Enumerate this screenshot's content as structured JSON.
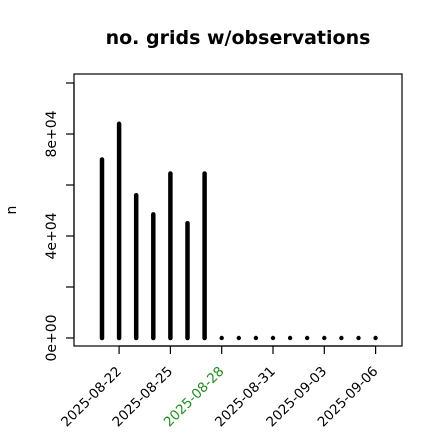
{
  "chart_data": {
    "type": "bar",
    "title": "no. grids w/observations",
    "ylabel": "n",
    "xlabel": "",
    "ylim": [
      0,
      100000
    ],
    "y_ticks": [
      0,
      20000,
      40000,
      60000,
      80000,
      100000
    ],
    "y_tick_labels": [
      "0e+00",
      "",
      "4e+04",
      "",
      "8e+04",
      ""
    ],
    "categories": [
      "2025-08-21",
      "2025-08-22",
      "2025-08-23",
      "2025-08-24",
      "2025-08-25",
      "2025-08-26",
      "2025-08-27",
      "2025-08-28",
      "2025-08-29",
      "2025-08-30",
      "2025-08-31",
      "2025-09-01",
      "2025-09-02",
      "2025-09-03",
      "2025-09-04",
      "2025-09-05",
      "2025-09-06"
    ],
    "values": [
      70000,
      84000,
      56000,
      48500,
      64500,
      45000,
      64500,
      0,
      0,
      0,
      0,
      0,
      0,
      0,
      0,
      0,
      0
    ],
    "x_tick_labels": [
      "2025-08-22",
      "2025-08-25",
      "2025-08-28",
      "2025-08-31",
      "2025-09-03",
      "2025-09-06"
    ],
    "highlight_tick": "2025-08-28",
    "colors": {
      "bars": "#000000",
      "highlight_label": "#228B22",
      "axis": "#000000"
    },
    "grid": false
  }
}
